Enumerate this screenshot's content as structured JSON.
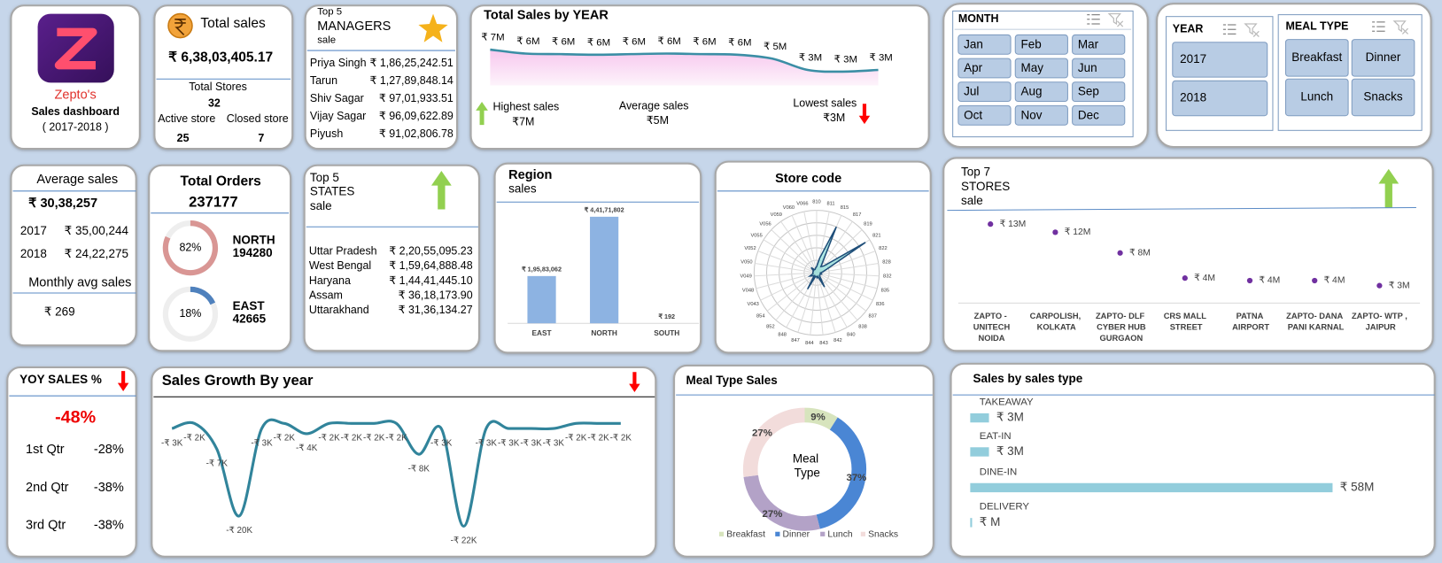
{
  "logo": {
    "brand": "Zepto's",
    "title": "Sales dashboard",
    "period": "( 2017-2018 )"
  },
  "total_sales": {
    "label": "Total sales",
    "value": "₹ 6,38,03,405.17",
    "stores_label": "Total Stores",
    "stores": 32,
    "active_label": "Active store",
    "closed_label": "Closed store",
    "active": 25,
    "closed": 7
  },
  "managers": {
    "title": [
      "Top 5",
      "MANAGERS",
      "sale"
    ],
    "rows": [
      [
        "Priya Singh",
        "₹ 1,86,25,242.51"
      ],
      [
        "Tarun",
        "₹ 1,27,89,848.14"
      ],
      [
        "Shiv Sagar",
        "₹ 97,01,933.51"
      ],
      [
        "Vijay Sagar",
        "₹ 96,09,622.89"
      ],
      [
        "Piyush",
        "₹ 91,02,806.78"
      ]
    ]
  },
  "sales_summary": {
    "highest_label": "Highest sales",
    "highest": "₹7M",
    "average_label": "Average sales",
    "average": "₹5M",
    "lowest_label": "Lowest sales",
    "lowest": "₹3M"
  },
  "month_slicer": {
    "title": "MONTH",
    "items": [
      "Jan",
      "Feb",
      "Mar",
      "Apr",
      "May",
      "Jun",
      "Jul",
      "Aug",
      "Sep",
      "Oct",
      "Nov",
      "Dec"
    ]
  },
  "year_slicer": {
    "title": "YEAR",
    "items": [
      "2017",
      "2018"
    ]
  },
  "meal_slicer": {
    "title": "MEAL TYPE",
    "items": [
      "Breakfast",
      "Dinner",
      "Lunch",
      "Snacks"
    ]
  },
  "average_sales": {
    "label": "Average sales",
    "value": "₹ 30,38,257",
    "rows": [
      [
        "2017",
        "₹ 35,00,244"
      ],
      [
        "2018",
        "₹ 24,22,275"
      ]
    ],
    "monthly_label": "Monthly avg sales",
    "monthly": "₹ 269"
  },
  "states": {
    "title": [
      "Top 5",
      "STATES",
      "sale"
    ],
    "rows": [
      [
        "Uttar Pradesh",
        "₹ 2,20,55,095.23"
      ],
      [
        "West Bengal",
        "₹ 1,59,64,888.48"
      ],
      [
        "Haryana",
        "₹ 1,44,41,445.10"
      ],
      [
        "Assam",
        "₹ 36,18,173.90"
      ],
      [
        "Uttarakhand",
        "₹ 31,36,134.27"
      ]
    ]
  },
  "yoy": {
    "title": "YOY SALES %",
    "value": "-48%",
    "rows": [
      [
        "1st Qtr",
        "-28%"
      ],
      [
        "2nd Qtr",
        "-38%"
      ],
      [
        "3rd Qtr",
        "-38%"
      ]
    ]
  },
  "chart_data": [
    {
      "type": "area",
      "title": "Total Sales by YEAR",
      "values": [
        7,
        6.3,
        6.2,
        6.1,
        6.2,
        6.3,
        6.2,
        6.1,
        5.4,
        3.4,
        3.1,
        3.4
      ],
      "value_labels": [
        "₹ 7M",
        "₹ 6M",
        "₹ 6M",
        "₹ 6M",
        "₹ 6M",
        "₹ 6M",
        "₹ 6M",
        "₹ 6M",
        "₹ 5M",
        "₹ 3M",
        "₹ 3M",
        "₹ 3M"
      ],
      "color": "#3b8ea5"
    },
    {
      "type": "gauge",
      "title": "Total Orders",
      "total": 237177,
      "categories": [
        "NORTH",
        "EAST"
      ],
      "values": [
        82,
        18
      ],
      "value_labels": [
        "82%",
        "18%"
      ],
      "counts": [
        194280,
        42665
      ],
      "colors": [
        "#d99694",
        "#4f81bd"
      ]
    },
    {
      "type": "bar",
      "title": "Region",
      "subtitle": "sales",
      "categories": [
        "EAST",
        "NORTH",
        "SOUTH"
      ],
      "values": [
        19583062,
        44171802,
        192
      ],
      "value_labels": [
        "₹ 1,95,83,062",
        "₹ 4,41,71,802",
        "₹ 192"
      ],
      "color": "#8db3e2"
    },
    {
      "type": "radar",
      "title": "Store code",
      "categories": [
        "810",
        "811",
        "815",
        "817",
        "819",
        "821",
        "822",
        "828",
        "832",
        "835",
        "836",
        "837",
        "838",
        "840",
        "842",
        "843",
        "844",
        "847",
        "848",
        "852",
        "854",
        "V043",
        "V048",
        "V049",
        "V050",
        "V052",
        "V055",
        "V056",
        "V059",
        "V060",
        "V066"
      ],
      "values": [
        0.5,
        1.2,
        4.0,
        0.6,
        0.8,
        4.6,
        0.9,
        0.5,
        0.3,
        0.4,
        0.3,
        0.3,
        0.4,
        1.3,
        0.3,
        0.4,
        0.3,
        0.3,
        1.5,
        0.3,
        0.4,
        0.6,
        0.3,
        0.3,
        0.3,
        0.3,
        0.3,
        0.6,
        0.3,
        0.3,
        0.4
      ],
      "rlim": [
        0,
        5
      ],
      "color": "#1f4e79"
    },
    {
      "type": "dot",
      "title": [
        "Top 7",
        "STORES",
        "sale"
      ],
      "categories": [
        "ZAPTO - UNITECH NOIDA",
        "CARPOLISH, KOLKATA",
        "ZAPTO- DLF CYBER HUB GURGAON",
        "CRS MALL STREET",
        "PATNA AIRPORT",
        "ZAPTO- DANA PANI KARNAL",
        "ZAPTO- WTP , JAIPUR"
      ],
      "values": [
        13.0,
        11.7,
        8.4,
        4.4,
        4.0,
        4.0,
        3.2
      ],
      "value_labels": [
        "₹ 13M",
        "₹ 12M",
        "₹ 8M",
        "₹ 4M",
        "₹ 4M",
        "₹ 4M",
        "₹ 3M"
      ],
      "color": "#7030a0"
    },
    {
      "type": "line",
      "title": "Sales Growth By year",
      "values": [
        -3,
        -2,
        -7,
        -20,
        -3,
        -2,
        -4,
        -2,
        -2,
        -2,
        -2,
        -8,
        -3,
        -22,
        -3,
        -3,
        -3,
        -3,
        -2,
        -2,
        -2
      ],
      "value_labels": [
        "-₹ 3K",
        "-₹ 2K",
        "-₹ 7K",
        "-₹ 20K",
        "-₹ 3K",
        "-₹ 2K",
        "-₹ 4K",
        "-₹ 2K",
        "-₹ 2K",
        "-₹ 2K",
        "-₹ 2K",
        "-₹ 8K",
        "-₹ 3K",
        "-₹ 22K",
        "-₹ 3K",
        "-₹ 3K",
        "-₹ 3K",
        "-₹ 3K",
        "-₹ 2K",
        "-₹ 2K",
        "-₹ 2K"
      ],
      "color": "#31849b"
    },
    {
      "type": "donut",
      "title": "Meal Type Sales",
      "center_label": "Meal Type",
      "categories": [
        "Breakfast",
        "Dinner",
        "Lunch",
        "Snacks"
      ],
      "values": [
        9,
        37,
        27,
        27
      ],
      "value_labels": [
        "9%",
        "37%",
        "27%",
        "27%"
      ],
      "colors": [
        "#d7e4bd",
        "#4a86d4",
        "#b3a2c7",
        "#f2dcdb"
      ]
    },
    {
      "type": "hbar",
      "title": "Sales by sales type",
      "categories": [
        "TAKEAWAY",
        "EAT-IN",
        "DINE-IN",
        "DELIVERY"
      ],
      "values": [
        3,
        3,
        58,
        0.3
      ],
      "value_labels": [
        "₹ 3M",
        "₹ 3M",
        "₹ 58M",
        "₹ M"
      ],
      "color": "#92cddc"
    }
  ]
}
